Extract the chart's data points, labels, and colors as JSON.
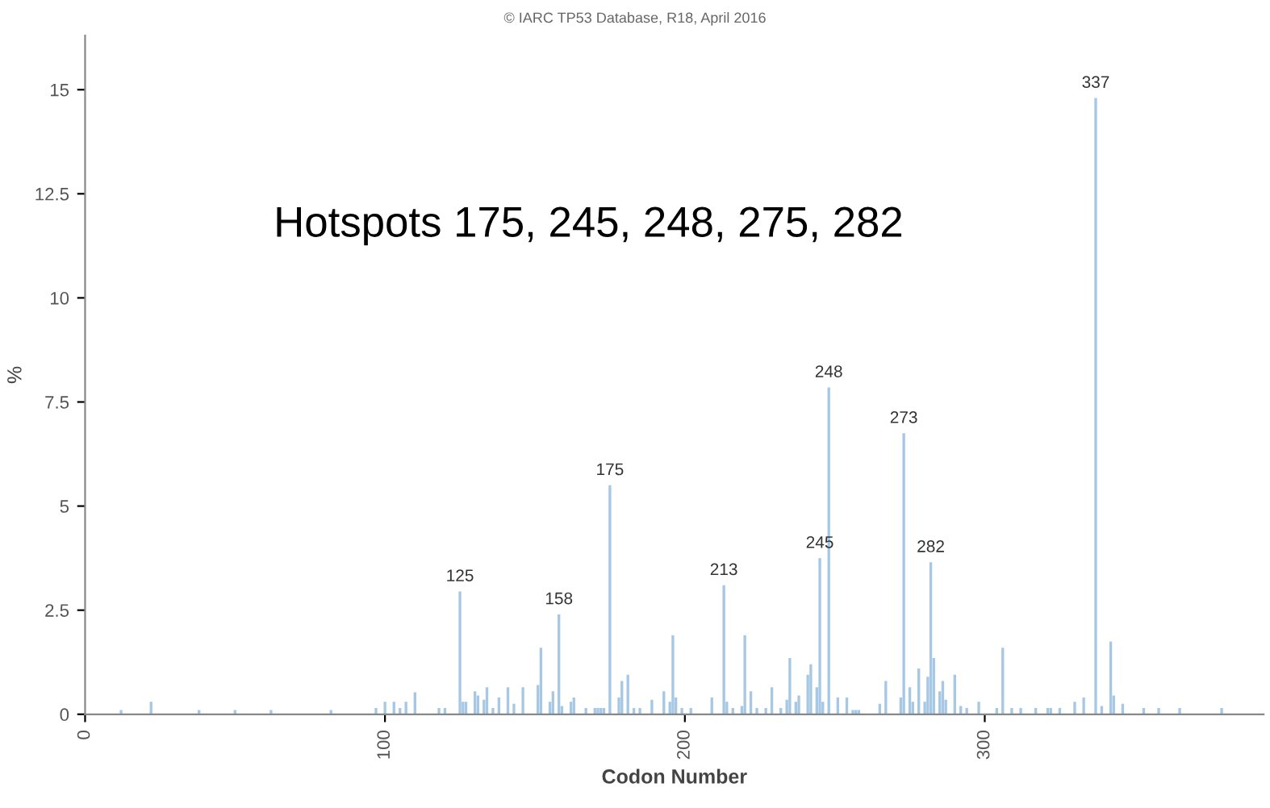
{
  "chart_data": {
    "type": "bar",
    "xlabel": "Codon Number",
    "ylabel": "%",
    "x": [
      12,
      22,
      38,
      50,
      62,
      82,
      97,
      100,
      103,
      105,
      107,
      110,
      118,
      120,
      125,
      126,
      127,
      130,
      131,
      133,
      134,
      136,
      138,
      141,
      143,
      146,
      151,
      152,
      155,
      156,
      158,
      159,
      162,
      163,
      167,
      170,
      171,
      172,
      173,
      175,
      178,
      179,
      181,
      183,
      185,
      189,
      193,
      195,
      196,
      197,
      199,
      202,
      209,
      213,
      214,
      216,
      219,
      220,
      222,
      224,
      227,
      229,
      232,
      234,
      235,
      237,
      238,
      241,
      242,
      244,
      245,
      246,
      248,
      251,
      254,
      256,
      257,
      258,
      265,
      267,
      272,
      273,
      275,
      276,
      278,
      280,
      281,
      282,
      283,
      285,
      286,
      287,
      290,
      292,
      294,
      298,
      304,
      306,
      309,
      312,
      317,
      321,
      322,
      325,
      330,
      333,
      337,
      339,
      342,
      343,
      346,
      353,
      358,
      365,
      379
    ],
    "series": [
      {
        "color": "#a6c8e4",
        "values": [
          0.1,
          0.3,
          0.1,
          0.1,
          0.1,
          0.1,
          0.15,
          0.3,
          0.3,
          0.15,
          0.3,
          0.53,
          0.15,
          0.15,
          2.95,
          0.3,
          0.3,
          0.55,
          0.45,
          0.35,
          0.65,
          0.15,
          0.4,
          0.65,
          0.25,
          0.65,
          0.7,
          1.6,
          0.3,
          0.55,
          2.4,
          0.2,
          0.3,
          0.4,
          0.15,
          0.15,
          0.15,
          0.15,
          0.15,
          5.5,
          0.4,
          0.8,
          0.95,
          0.15,
          0.15,
          0.35,
          0.55,
          0.3,
          1.9,
          0.4,
          0.15,
          0.15,
          0.4,
          3.1,
          0.3,
          0.15,
          0.2,
          1.9,
          0.55,
          0.15,
          0.15,
          0.65,
          0.15,
          0.35,
          1.35,
          0.3,
          0.45,
          0.95,
          1.2,
          0.65,
          3.75,
          0.3,
          7.85,
          0.4,
          0.4,
          0.1,
          0.1,
          0.1,
          0.25,
          0.8,
          0.4,
          6.75,
          0.65,
          0.3,
          1.1,
          0.3,
          0.9,
          3.65,
          1.35,
          0.55,
          0.8,
          0.35,
          0.95,
          0.2,
          0.15,
          0.3,
          0.15,
          1.6,
          0.15,
          0.15,
          0.15,
          0.15,
          0.15,
          0.15,
          0.3,
          0.4,
          14.8,
          0.2,
          1.75,
          0.45,
          0.25,
          0.15,
          0.15,
          0.15,
          0.15
        ]
      }
    ],
    "xlim": [
      0,
      393
    ],
    "xticks": [
      0,
      100,
      200,
      300
    ],
    "ylim": [
      0,
      16.3
    ],
    "yticks": [
      0,
      2.5,
      5,
      7.5,
      10,
      12.5,
      15
    ],
    "grid": false,
    "annotations": [
      "© IARC TP53 Database, R18, April 2016",
      "Hotspots 175, 245, 248, 275, 282",
      {
        "text": "125",
        "x": 125,
        "y": 2.95
      },
      {
        "text": "158",
        "x": 158,
        "y": 2.4
      },
      {
        "text": "175",
        "x": 175,
        "y": 5.5
      },
      {
        "text": "213",
        "x": 213,
        "y": 3.1
      },
      {
        "text": "245",
        "x": 245,
        "y": 3.75
      },
      {
        "text": "248",
        "x": 248,
        "y": 7.85
      },
      {
        "text": "273",
        "x": 273,
        "y": 6.75
      },
      {
        "text": "282",
        "x": 282,
        "y": 3.65
      },
      {
        "text": "337",
        "x": 337,
        "y": 14.8
      }
    ]
  }
}
